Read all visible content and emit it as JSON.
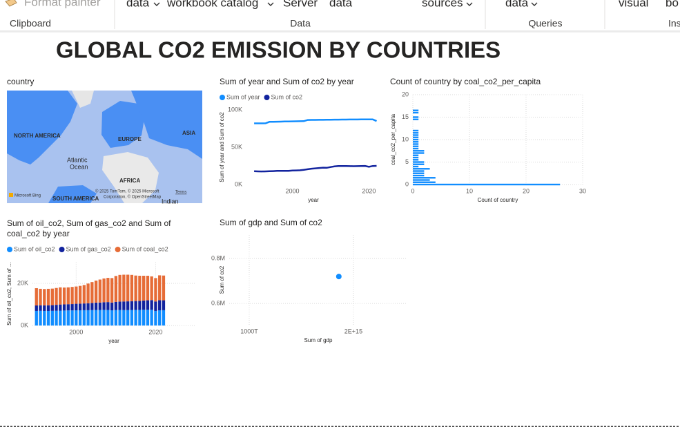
{
  "ribbon": {
    "items": [
      "Format painter",
      "data",
      "workbook catalog",
      "Server",
      "data",
      "sources",
      "data",
      "visual",
      "bo"
    ],
    "groups": [
      "Clipboard",
      "Data",
      "Queries",
      "Ins"
    ]
  },
  "report_title": "GLOBAL CO2 EMISSION BY COUNTRIES",
  "chart_data": [
    {
      "type": "map",
      "title": "country",
      "labels": [
        "NORTH AMERICA",
        "EUROPE",
        "ASIA",
        "Atlantic",
        "Ocean",
        "AFRICA",
        "SOUTH AMERICA",
        "Indian"
      ],
      "attribution": [
        "© 2025 TomTom, © 2025 Microsoft",
        "Corporation, © OpenStreetMap"
      ],
      "terms": "Terms",
      "logo": "Microsoft Bing"
    },
    {
      "type": "line",
      "title": "Sum of year and Sum of co2 by year",
      "x_label": "year",
      "y_label": "Sum of year and Sum of co2",
      "x": [
        1990,
        1991,
        1992,
        1993,
        1994,
        1995,
        1996,
        1997,
        1998,
        1999,
        2000,
        2001,
        2002,
        2003,
        2004,
        2005,
        2006,
        2007,
        2008,
        2009,
        2010,
        2011,
        2012,
        2013,
        2014,
        2015,
        2016,
        2017,
        2018,
        2019,
        2020,
        2021,
        2022
      ],
      "series": [
        {
          "name": "Sum of year",
          "color": "#118dff",
          "values": [
            81900,
            81900,
            81950,
            82000,
            84000,
            84100,
            84200,
            84300,
            84400,
            84500,
            84600,
            84700,
            84800,
            84900,
            86500,
            86600,
            86600,
            86700,
            86700,
            86800,
            86800,
            86900,
            86900,
            87000,
            87000,
            87100,
            87100,
            87100,
            87200,
            87200,
            87300,
            87300,
            85000
          ]
        },
        {
          "name": "Sum of co2",
          "color": "#12239e",
          "values": [
            17800,
            17600,
            17500,
            17600,
            17800,
            18000,
            18200,
            18300,
            18200,
            18300,
            18700,
            18900,
            19100,
            19700,
            20500,
            21200,
            21700,
            22100,
            22600,
            22400,
            23400,
            24300,
            24700,
            24800,
            24700,
            24600,
            24500,
            24600,
            24800,
            24900,
            23700,
            24800,
            25000
          ]
        }
      ],
      "xlim": [
        1988,
        2023
      ],
      "xticks": [
        2000,
        2020
      ],
      "ylim": [
        0,
        100000
      ],
      "yticks": [
        {
          "value": 0,
          "label": "0K"
        },
        {
          "value": 50000,
          "label": "50K"
        },
        {
          "value": 100000,
          "label": "100K"
        }
      ],
      "grid": false
    },
    {
      "type": "bar",
      "orientation": "horizontal",
      "title": "Count of country by coal_co2_per_capita",
      "x_label": "Count of country",
      "y_label": "coal_co2_per_capita",
      "color": "#118dff",
      "y": [
        0,
        0.5,
        1,
        1.5,
        2,
        2.5,
        3,
        3.5,
        4,
        4.5,
        5,
        5.5,
        6,
        6.5,
        7,
        7.5,
        8,
        8.5,
        9,
        9.5,
        10,
        10.5,
        11,
        11.5,
        12,
        14.5,
        15,
        16,
        16.5
      ],
      "values": [
        26,
        4,
        3,
        4,
        2,
        2,
        2,
        3,
        1,
        2,
        2,
        1,
        1,
        1,
        2,
        2,
        1,
        1,
        1,
        1,
        1,
        1,
        1,
        1,
        1,
        1,
        1,
        1,
        1
      ],
      "xlim": [
        0,
        30
      ],
      "xticks": [
        0,
        10,
        20,
        30
      ],
      "ylim": [
        0,
        20
      ],
      "yticks": [
        0,
        5,
        10,
        15,
        20
      ],
      "grid": true
    },
    {
      "type": "bar",
      "stacked": true,
      "title": "Sum of oil_co2, Sum of gas_co2 and Sum of coal_co2 by year",
      "x_label": "year",
      "y_label": "Sum of oil_co2, Sum of ...",
      "x": [
        1990,
        1991,
        1992,
        1993,
        1994,
        1995,
        1996,
        1997,
        1998,
        1999,
        2000,
        2001,
        2002,
        2003,
        2004,
        2005,
        2006,
        2007,
        2008,
        2009,
        2010,
        2011,
        2012,
        2013,
        2014,
        2015,
        2016,
        2017,
        2018,
        2019,
        2020,
        2021,
        2022
      ],
      "series": [
        {
          "name": "Sum of oil_co2",
          "color": "#118dff",
          "values": [
            6900,
            6950,
            6900,
            6900,
            6950,
            7000,
            7050,
            7100,
            7150,
            7150,
            7200,
            7200,
            7250,
            7250,
            7300,
            7350,
            7350,
            7400,
            7350,
            7200,
            7300,
            7350,
            7300,
            7300,
            7350,
            7400,
            7400,
            7450,
            7450,
            7450,
            6900,
            7200,
            7250
          ]
        },
        {
          "name": "Sum of gas_co2",
          "color": "#12239e",
          "values": [
            2600,
            2650,
            2650,
            2700,
            2700,
            2800,
            2900,
            2900,
            2950,
            3000,
            3100,
            3150,
            3200,
            3300,
            3400,
            3500,
            3550,
            3650,
            3750,
            3700,
            3900,
            4000,
            4100,
            4150,
            4200,
            4200,
            4250,
            4400,
            4500,
            4600,
            4500,
            4800,
            4700
          ]
        },
        {
          "name": "Sum of coal_co2",
          "color": "#e66c37",
          "values": [
            8200,
            7800,
            7750,
            7800,
            7850,
            8000,
            8150,
            8000,
            8000,
            8150,
            8200,
            8450,
            8750,
            9350,
            9900,
            10450,
            10900,
            11250,
            11500,
            11600,
            12300,
            12650,
            12700,
            12650,
            12450,
            12100,
            11950,
            11750,
            11650,
            11250,
            11100,
            11800,
            11750
          ]
        }
      ],
      "xlim": [
        1989,
        2030
      ],
      "xticks": [
        2000,
        2020
      ],
      "ylim": [
        0,
        30000
      ],
      "yticks": [
        {
          "value": 0,
          "label": "0K"
        },
        {
          "value": 20000,
          "label": "20K"
        }
      ],
      "grid": true
    },
    {
      "type": "scatter",
      "title": "Sum of gdp and Sum of co2",
      "x_label": "Sum of gdp",
      "y_label": "Sum of co2",
      "color": "#118dff",
      "x": [
        1860000000000000
      ],
      "values": [
        720000
      ],
      "xlim": [
        808000000000000,
        2517000000000000
      ],
      "xticks": [
        {
          "value": 1000000000000000,
          "label": "1000T"
        },
        {
          "value": 2000000000000000,
          "label": "2E+15"
        }
      ],
      "ylim": [
        505000,
        905000
      ],
      "yticks": [
        {
          "value": 600000,
          "label": "0.6M"
        },
        {
          "value": 800000,
          "label": "0.8M"
        }
      ],
      "grid": true
    }
  ]
}
